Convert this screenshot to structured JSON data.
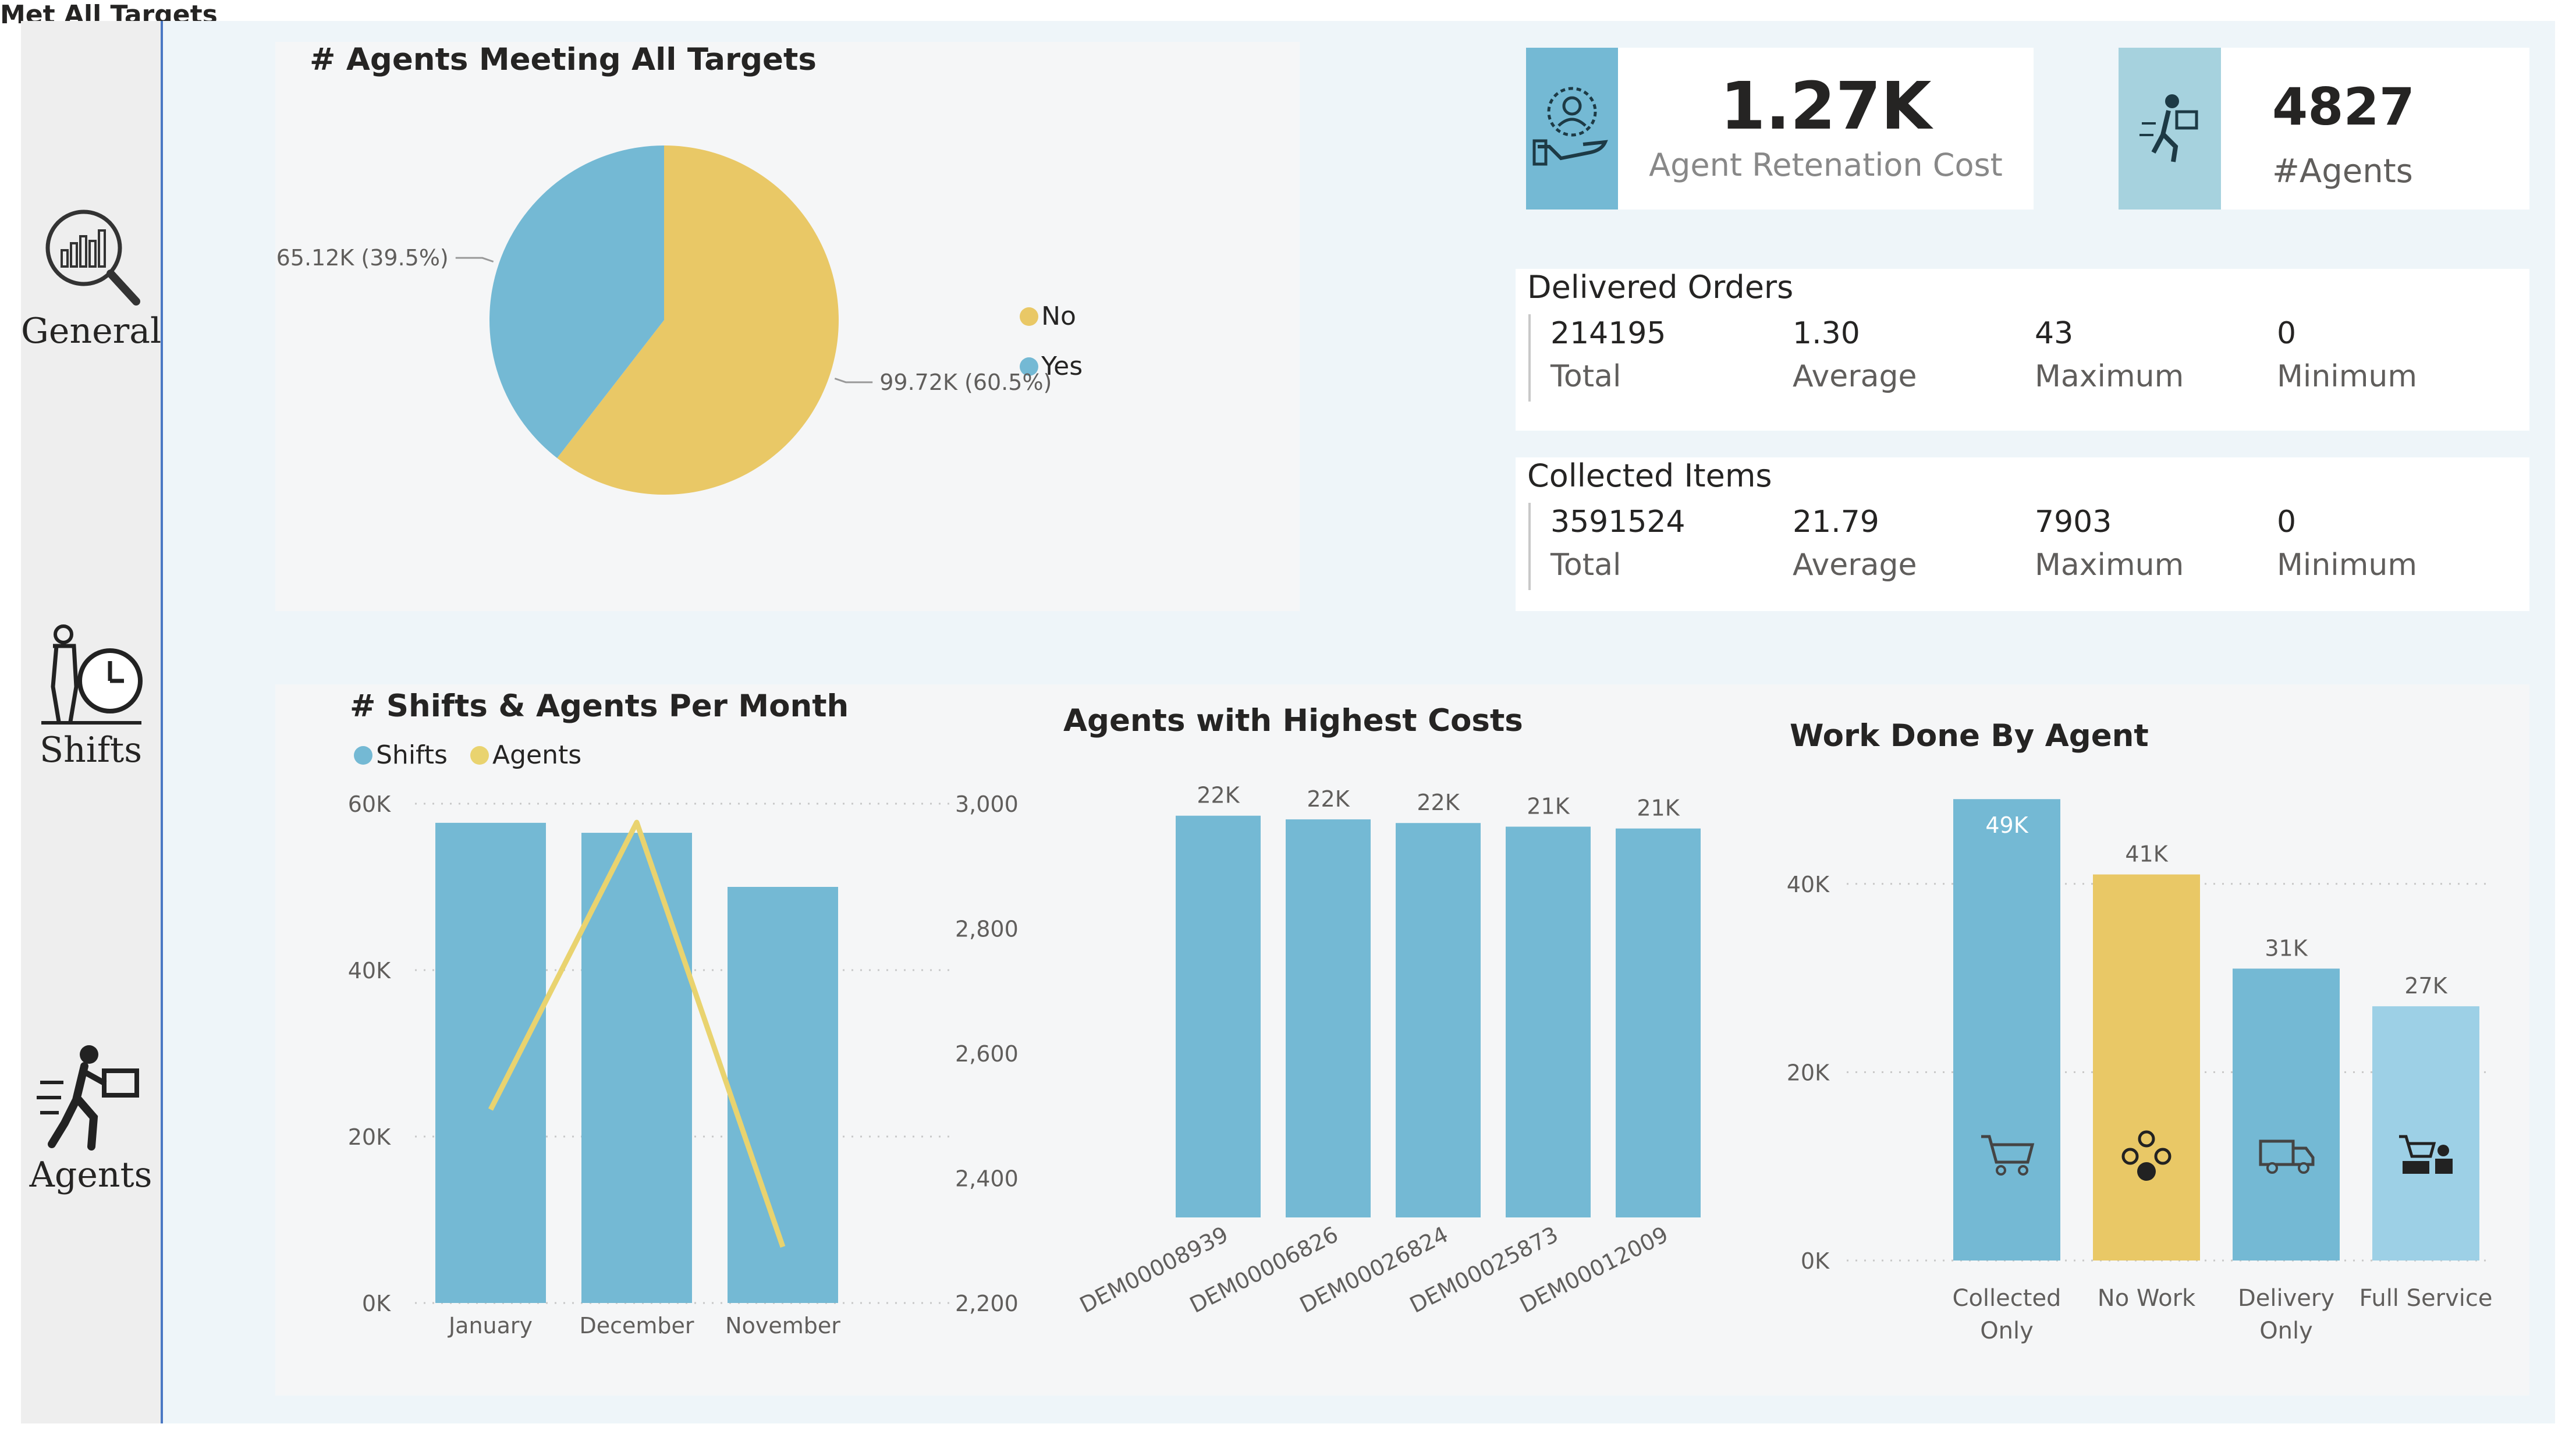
{
  "sidebar": {
    "items": [
      {
        "label": "General",
        "icon": "magnifier-chart-icon"
      },
      {
        "label": "Shifts",
        "icon": "agent-clock-icon"
      },
      {
        "label": "Agents",
        "icon": "delivery-agent-icon"
      }
    ]
  },
  "pie": {
    "title": "# Agents Meeting All Targets",
    "legend_title": "Met All Targets",
    "legend": [
      {
        "name": "No",
        "color": "#e9c866"
      },
      {
        "name": "Yes",
        "color": "#74b9d4"
      }
    ]
  },
  "kpi": {
    "retention": {
      "value": "1.27K",
      "label": "Agent Retenation Cost"
    },
    "agents": {
      "value": "4827",
      "label": "#Agents"
    }
  },
  "delivered": {
    "title": "Delivered Orders",
    "cells": [
      {
        "value": "214195",
        "label": "Total"
      },
      {
        "value": "1.30",
        "label": "Average"
      },
      {
        "value": "43",
        "label": "Maximum"
      },
      {
        "value": "0",
        "label": "Minimum"
      }
    ]
  },
  "collected": {
    "title": "Collected Items",
    "cells": [
      {
        "value": "3591524",
        "label": "Total"
      },
      {
        "value": "21.79",
        "label": "Average"
      },
      {
        "value": "7903",
        "label": "Maximum"
      },
      {
        "value": "0",
        "label": "Minimum"
      }
    ]
  },
  "colors": {
    "blue": "#74b9d4",
    "yellow": "#e9c866",
    "lightblue": "#9dd0e6"
  },
  "chart_data": [
    {
      "type": "pie",
      "title": "# Agents Meeting All Targets",
      "legend_title": "Met All Targets",
      "slices": [
        {
          "name": "No",
          "value": 99720,
          "label": "99.72K (60.5%)",
          "color": "#e9c866"
        },
        {
          "name": "Yes",
          "value": 65120,
          "label": "65.12K (39.5%)",
          "color": "#74b9d4"
        }
      ]
    },
    {
      "type": "bar",
      "title": "# Shifts & Agents Per Month",
      "categories": [
        "January",
        "December",
        "November"
      ],
      "series": [
        {
          "name": "Shifts",
          "type": "bar",
          "axis": "left",
          "values": [
            57700,
            56500,
            50000
          ],
          "color": "#74b9d4"
        },
        {
          "name": "Agents",
          "type": "line",
          "axis": "right",
          "values": [
            2510,
            2970,
            2290
          ],
          "color": "#e9d36f"
        }
      ],
      "y_left": {
        "range": [
          0,
          60000
        ],
        "ticks": [
          0,
          20000,
          40000,
          60000
        ],
        "tick_labels": [
          "0K",
          "20K",
          "40K",
          "60K"
        ]
      },
      "y_right": {
        "range": [
          2200,
          3000
        ],
        "ticks": [
          2200,
          2400,
          2600,
          2800,
          3000
        ],
        "tick_labels": [
          "2,200",
          "2,400",
          "2,600",
          "2,800",
          "3,000"
        ]
      }
    },
    {
      "type": "bar",
      "title": "Agents with Highest Costs",
      "categories": [
        "DEM00008939",
        "DEM00006826",
        "DEM00026824",
        "DEM00025873",
        "DEM00012009"
      ],
      "values": [
        22000,
        21800,
        21600,
        21400,
        21300
      ],
      "data_labels": [
        "22K",
        "22K",
        "22K",
        "21K",
        "21K"
      ],
      "ylim": [
        0,
        22500
      ]
    },
    {
      "type": "bar",
      "title": "Work Done By Agent",
      "categories": [
        "Collected Only",
        "No Work",
        "Delivery Only",
        "Full Service"
      ],
      "values": [
        49000,
        41000,
        31000,
        27000
      ],
      "data_labels": [
        "49K",
        "41K",
        "31K",
        "27K"
      ],
      "colors": [
        "#74b9d4",
        "#e9c866",
        "#74b9d4",
        "#9dd0e6"
      ],
      "icons": [
        "cart-icon",
        "group-icon",
        "truck-icon",
        "full-service-icon"
      ],
      "y": {
        "range": [
          0,
          50000
        ],
        "ticks": [
          0,
          20000,
          40000
        ],
        "tick_labels": [
          "0K",
          "20K",
          "40K"
        ]
      }
    }
  ]
}
